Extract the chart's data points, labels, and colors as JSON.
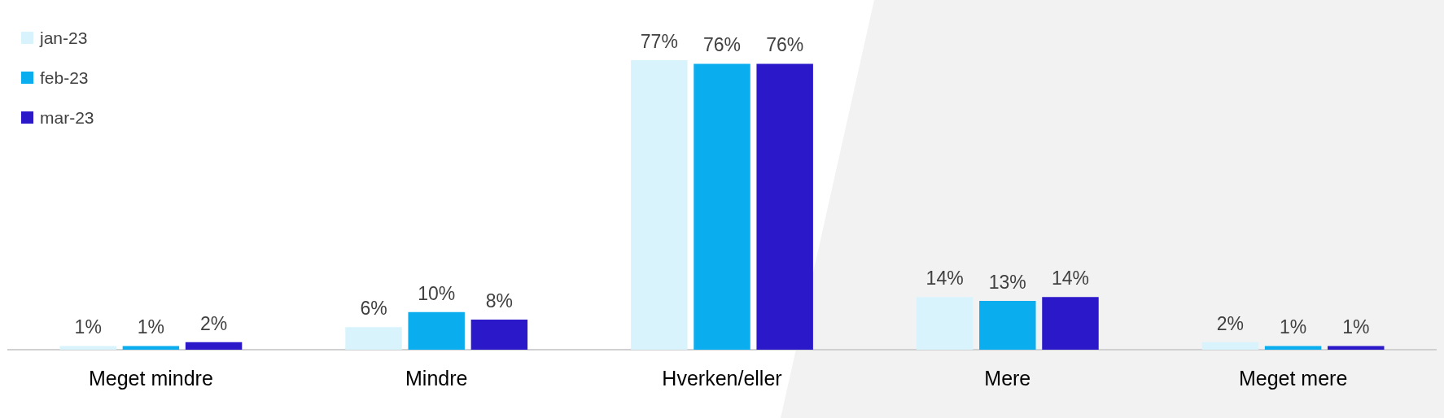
{
  "chart_data": {
    "type": "bar",
    "categories": [
      "Meget mindre",
      "Mindre",
      "Hverken/eller",
      "Mere",
      "Meget mere"
    ],
    "series": [
      {
        "name": "jan-23",
        "color": "#d9f3fc",
        "values": [
          1,
          6,
          77,
          14,
          2
        ],
        "value_labels": [
          "1%",
          "6%",
          "77%",
          "14%",
          "2%"
        ]
      },
      {
        "name": "feb-23",
        "color": "#0aaded",
        "values": [
          1,
          10,
          76,
          13,
          1
        ],
        "value_labels": [
          "1%",
          "10%",
          "76%",
          "13%",
          "1%"
        ]
      },
      {
        "name": "mar-23",
        "color": "#2b18c9",
        "values": [
          2,
          8,
          76,
          14,
          1
        ],
        "value_labels": [
          "2%",
          "8%",
          "76%",
          "14%",
          "1%"
        ]
      }
    ],
    "legend": "top left",
    "grid": false,
    "tick_labels": "x"
  }
}
